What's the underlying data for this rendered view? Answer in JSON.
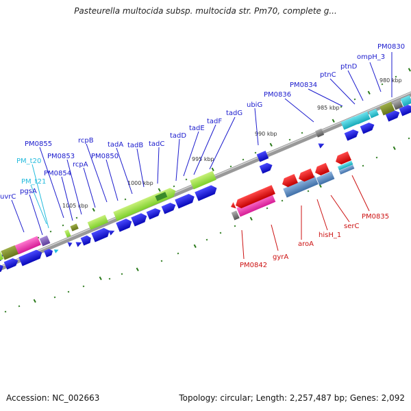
{
  "title": "Pasteurella multocida subsp. multocida str. Pm70, complete g...",
  "footer": {
    "accession": "Accession: NC_002663",
    "topology": "Topology: circular; Length: 2,257,487 bp; Genes: 2,092"
  },
  "colors": {
    "forward_label": "#1a1acd",
    "reverse_label": "#cc1111",
    "trna_label": "#22bbdd",
    "cds_blue": "#1515dd",
    "tick_green": "#2a7a1a"
  },
  "ruler": [
    {
      "id": "kbp-1005",
      "label": "1005 kbp"
    },
    {
      "id": "kbp-1000",
      "label": "1000 kbp"
    },
    {
      "id": "kbp-995",
      "label": "995 kbp"
    },
    {
      "id": "kbp-990",
      "label": "990 kbp"
    },
    {
      "id": "kbp-985",
      "label": "985 kbp"
    },
    {
      "id": "kbp-980",
      "label": "980 kbp"
    }
  ],
  "forward_labels": [
    "PM0830",
    "ompH_3",
    "ptnD",
    "ptnC",
    "PM0834",
    "PM0836",
    "ubiG",
    "tadG",
    "tadF",
    "tadE",
    "tadD",
    "tadC",
    "tadB",
    "tadA",
    "rcpB",
    "rcpA",
    "PM0850",
    "PM0853",
    "PM0854",
    "PM0855",
    "pgsA",
    "uvrC"
  ],
  "trna_labels": [
    "PM_t20",
    "PM_t21"
  ],
  "reverse_labels": [
    "PM0835",
    "serC",
    "hisH_1",
    "aroA",
    "gyrA",
    "PM0842"
  ]
}
